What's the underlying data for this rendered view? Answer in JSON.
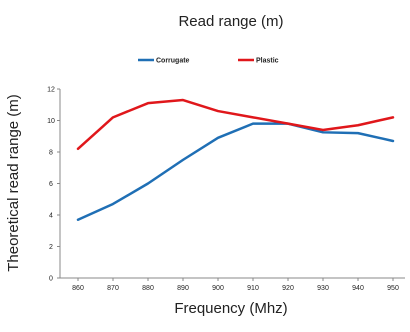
{
  "chart_data": {
    "type": "line",
    "title": "Read range (m)",
    "xlabel": "Frequency (Mhz)",
    "ylabel": "Theoretical read range (m)",
    "x": [
      860,
      870,
      880,
      890,
      900,
      910,
      920,
      930,
      940,
      950
    ],
    "xticks": [
      "860",
      "870",
      "880",
      "890",
      "900",
      "910",
      "920",
      "930",
      "940",
      "950"
    ],
    "yticks": [
      "0",
      "2",
      "4",
      "6",
      "8",
      "10",
      "12"
    ],
    "ylim": [
      0,
      12
    ],
    "grid": false,
    "legend_position": "top",
    "series": [
      {
        "name": "Corrugate",
        "color": "#1f6fb5",
        "values": [
          3.7,
          4.7,
          6.0,
          7.5,
          8.9,
          9.8,
          9.8,
          9.25,
          9.2,
          8.7
        ]
      },
      {
        "name": "Plastic",
        "color": "#e0171b",
        "values": [
          8.2,
          10.2,
          11.1,
          11.3,
          10.6,
          10.2,
          9.8,
          9.4,
          9.7,
          10.2
        ]
      }
    ]
  }
}
